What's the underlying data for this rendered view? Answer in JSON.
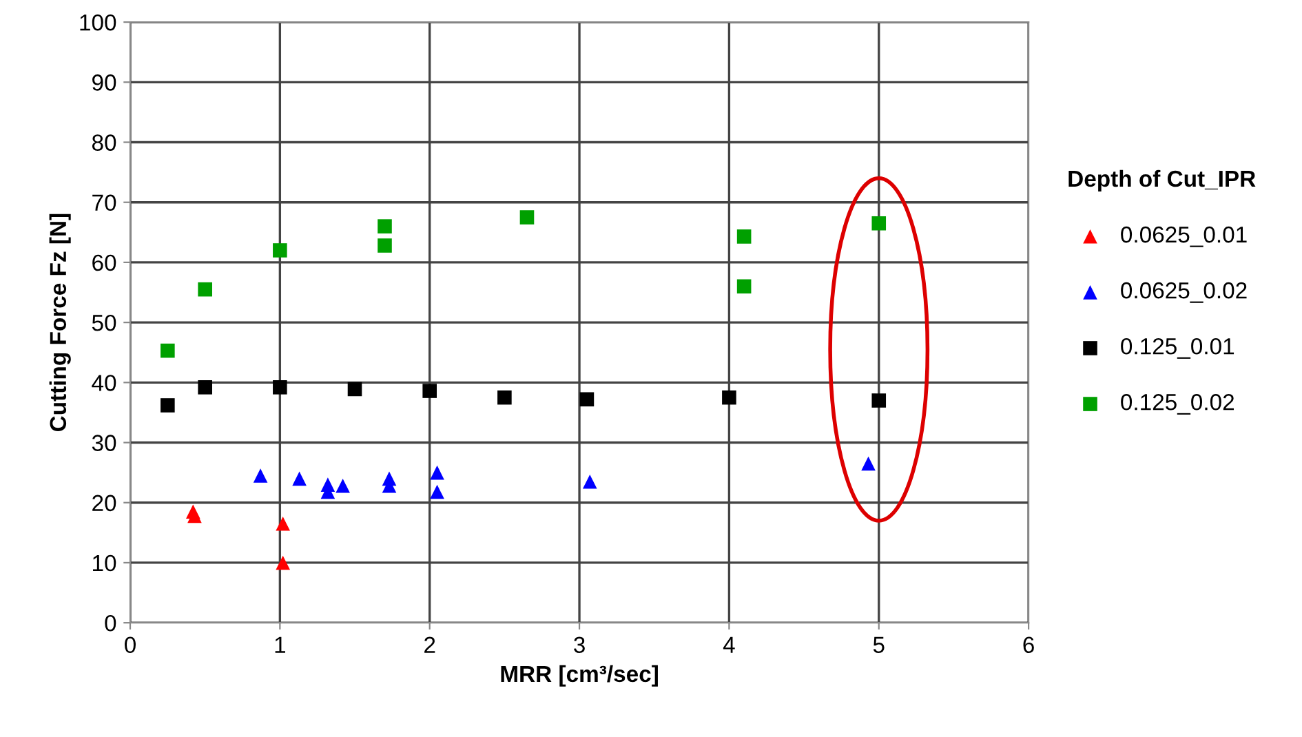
{
  "chart_data": {
    "type": "scatter",
    "xlabel": "MRR [cm³/sec]",
    "ylabel": "Cutting Force Fz [N]",
    "legend_title": "Depth of Cut_IPR",
    "xlim": [
      0,
      6
    ],
    "xticks": [
      0,
      1,
      2,
      3,
      4,
      5,
      6
    ],
    "ylim": [
      0,
      100
    ],
    "yticks": [
      0,
      10,
      20,
      30,
      40,
      50,
      60,
      70,
      80,
      90,
      100
    ],
    "grid": true,
    "legend": "right",
    "series": [
      {
        "name": "0.0625_0.01",
        "color": "#ff0000",
        "marker": "triangle",
        "x": [
          0.42,
          0.43,
          1.02,
          1.02
        ],
        "values": [
          18.5,
          17.8,
          16.5,
          10
        ]
      },
      {
        "name": "0.0625_0.02",
        "color": "#0000ff",
        "marker": "triangle",
        "x": [
          0.87,
          1.13,
          1.32,
          1.32,
          1.42,
          1.73,
          1.73,
          2.05,
          2.05,
          3.07,
          4.93
        ],
        "values": [
          24.5,
          24,
          21.8,
          23,
          22.8,
          24,
          22.8,
          25,
          21.8,
          23.5,
          26.5
        ]
      },
      {
        "name": "0.125_0.01",
        "color": "#000000",
        "marker": "square",
        "x": [
          0.25,
          0.5,
          1,
          1.5,
          2,
          2.5,
          3.05,
          4,
          5
        ],
        "values": [
          36.2,
          39.2,
          39.2,
          38.9,
          38.6,
          37.5,
          37.2,
          37.5,
          37
        ]
      },
      {
        "name": "0.125_0.02",
        "color": "#00a000",
        "marker": "square",
        "x": [
          0.25,
          0.5,
          1,
          1.7,
          1.7,
          2.65,
          4.1,
          4.1,
          5
        ],
        "values": [
          45.3,
          55.5,
          62,
          66,
          62.8,
          67.5,
          64.3,
          56,
          66.5
        ]
      }
    ]
  }
}
